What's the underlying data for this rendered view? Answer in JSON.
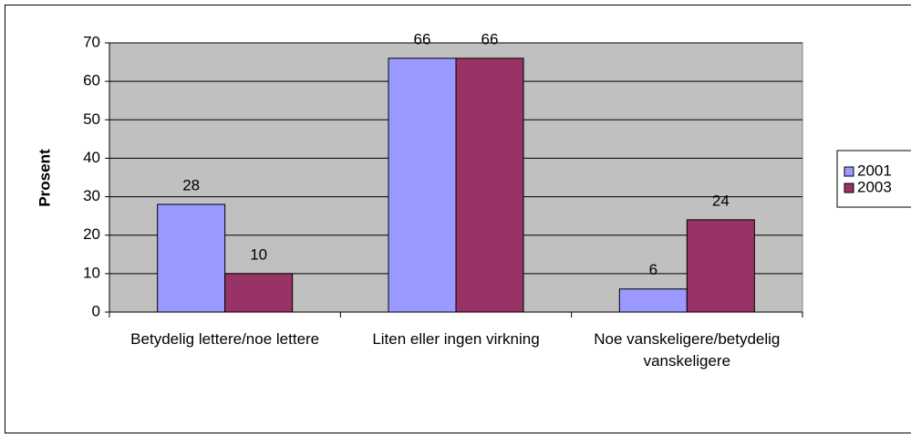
{
  "chart_data": {
    "type": "bar",
    "y_label": "Prosent",
    "categories": [
      "Betydelig lettere/noe lettere",
      "Liten eller ingen virkning",
      "Noe vanskeligere/betydelig vanskeligere"
    ],
    "series": [
      {
        "name": "2001",
        "color": "#9999ff",
        "values": [
          28,
          66,
          6
        ]
      },
      {
        "name": "2003",
        "color": "#993366",
        "values": [
          10,
          66,
          24
        ]
      }
    ],
    "ylim": [
      0,
      70
    ],
    "yticks": [
      0,
      10,
      20,
      30,
      40,
      50,
      60,
      70
    ],
    "grid": true,
    "legend": "right"
  }
}
